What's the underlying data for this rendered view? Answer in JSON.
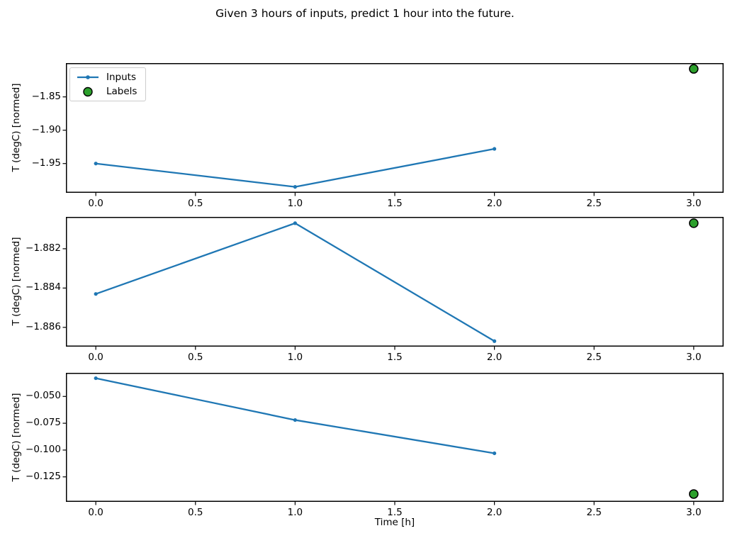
{
  "title": "Given 3 hours of inputs, predict 1 hour into the future.",
  "xlabel": "Time [h]",
  "legend": {
    "inputs_label": "Inputs",
    "labels_label": "Labels"
  },
  "colors": {
    "inputs": "#1f77b4",
    "labels_fill": "#2ca02c",
    "labels_edge": "#000000",
    "axis": "#000000",
    "legend_border": "#cccccc"
  },
  "chart_data": [
    {
      "type": "line",
      "subplot": "top",
      "ylabel": "T (degC) [normed]",
      "xlim": [
        -0.15,
        3.15
      ],
      "ylim": [
        -1.9939,
        -1.7993
      ],
      "grid": false,
      "legend_position": "upper left",
      "xticks": [
        0.0,
        0.5,
        1.0,
        1.5,
        2.0,
        2.5,
        3.0
      ],
      "xtick_labels": [
        "0.0",
        "0.5",
        "1.0",
        "1.5",
        "2.0",
        "2.5",
        "3.0"
      ],
      "yticks": [
        -1.85,
        -1.9,
        -1.95
      ],
      "ytick_labels": [
        "−1.85",
        "−1.90",
        "−1.95"
      ],
      "series": [
        {
          "name": "Inputs",
          "type": "line+marker",
          "x": [
            0,
            1,
            2
          ],
          "y": [
            -1.95,
            -1.985,
            -1.928
          ]
        },
        {
          "name": "Labels",
          "type": "scatter",
          "x": [
            3
          ],
          "y": [
            -1.808
          ]
        }
      ]
    },
    {
      "type": "line",
      "subplot": "middle",
      "ylabel": "T (degC) [normed]",
      "xlim": [
        -0.15,
        3.15
      ],
      "ylim": [
        -1.88698,
        -1.88038
      ],
      "grid": false,
      "xticks": [
        0.0,
        0.5,
        1.0,
        1.5,
        2.0,
        2.5,
        3.0
      ],
      "xtick_labels": [
        "0.0",
        "0.5",
        "1.0",
        "1.5",
        "2.0",
        "2.5",
        "3.0"
      ],
      "yticks": [
        -1.882,
        -1.884,
        -1.886
      ],
      "ytick_labels": [
        "−1.882",
        "−1.884",
        "−1.886"
      ],
      "series": [
        {
          "name": "Inputs",
          "type": "line+marker",
          "x": [
            0,
            1,
            2
          ],
          "y": [
            -1.8843,
            -1.8807,
            -1.8867
          ]
        },
        {
          "name": "Labels",
          "type": "scatter",
          "x": [
            3
          ],
          "y": [
            -1.8807
          ]
        }
      ]
    },
    {
      "type": "line",
      "subplot": "bottom",
      "ylabel": "T (degC) [normed]",
      "xlim": [
        -0.15,
        3.15
      ],
      "ylim": [
        -0.1483,
        -0.028
      ],
      "grid": false,
      "xticks": [
        0.0,
        0.5,
        1.0,
        1.5,
        2.0,
        2.5,
        3.0
      ],
      "xtick_labels": [
        "0.0",
        "0.5",
        "1.0",
        "1.5",
        "2.0",
        "2.5",
        "3.0"
      ],
      "yticks": [
        -0.05,
        -0.075,
        -0.1,
        -0.125
      ],
      "ytick_labels": [
        "−0.050",
        "−0.075",
        "−0.100",
        "−0.125"
      ],
      "series": [
        {
          "name": "Inputs",
          "type": "line+marker",
          "x": [
            0,
            1,
            2
          ],
          "y": [
            -0.033,
            -0.072,
            -0.103
          ]
        },
        {
          "name": "Labels",
          "type": "scatter",
          "x": [
            3
          ],
          "y": [
            -0.141
          ]
        }
      ]
    }
  ]
}
